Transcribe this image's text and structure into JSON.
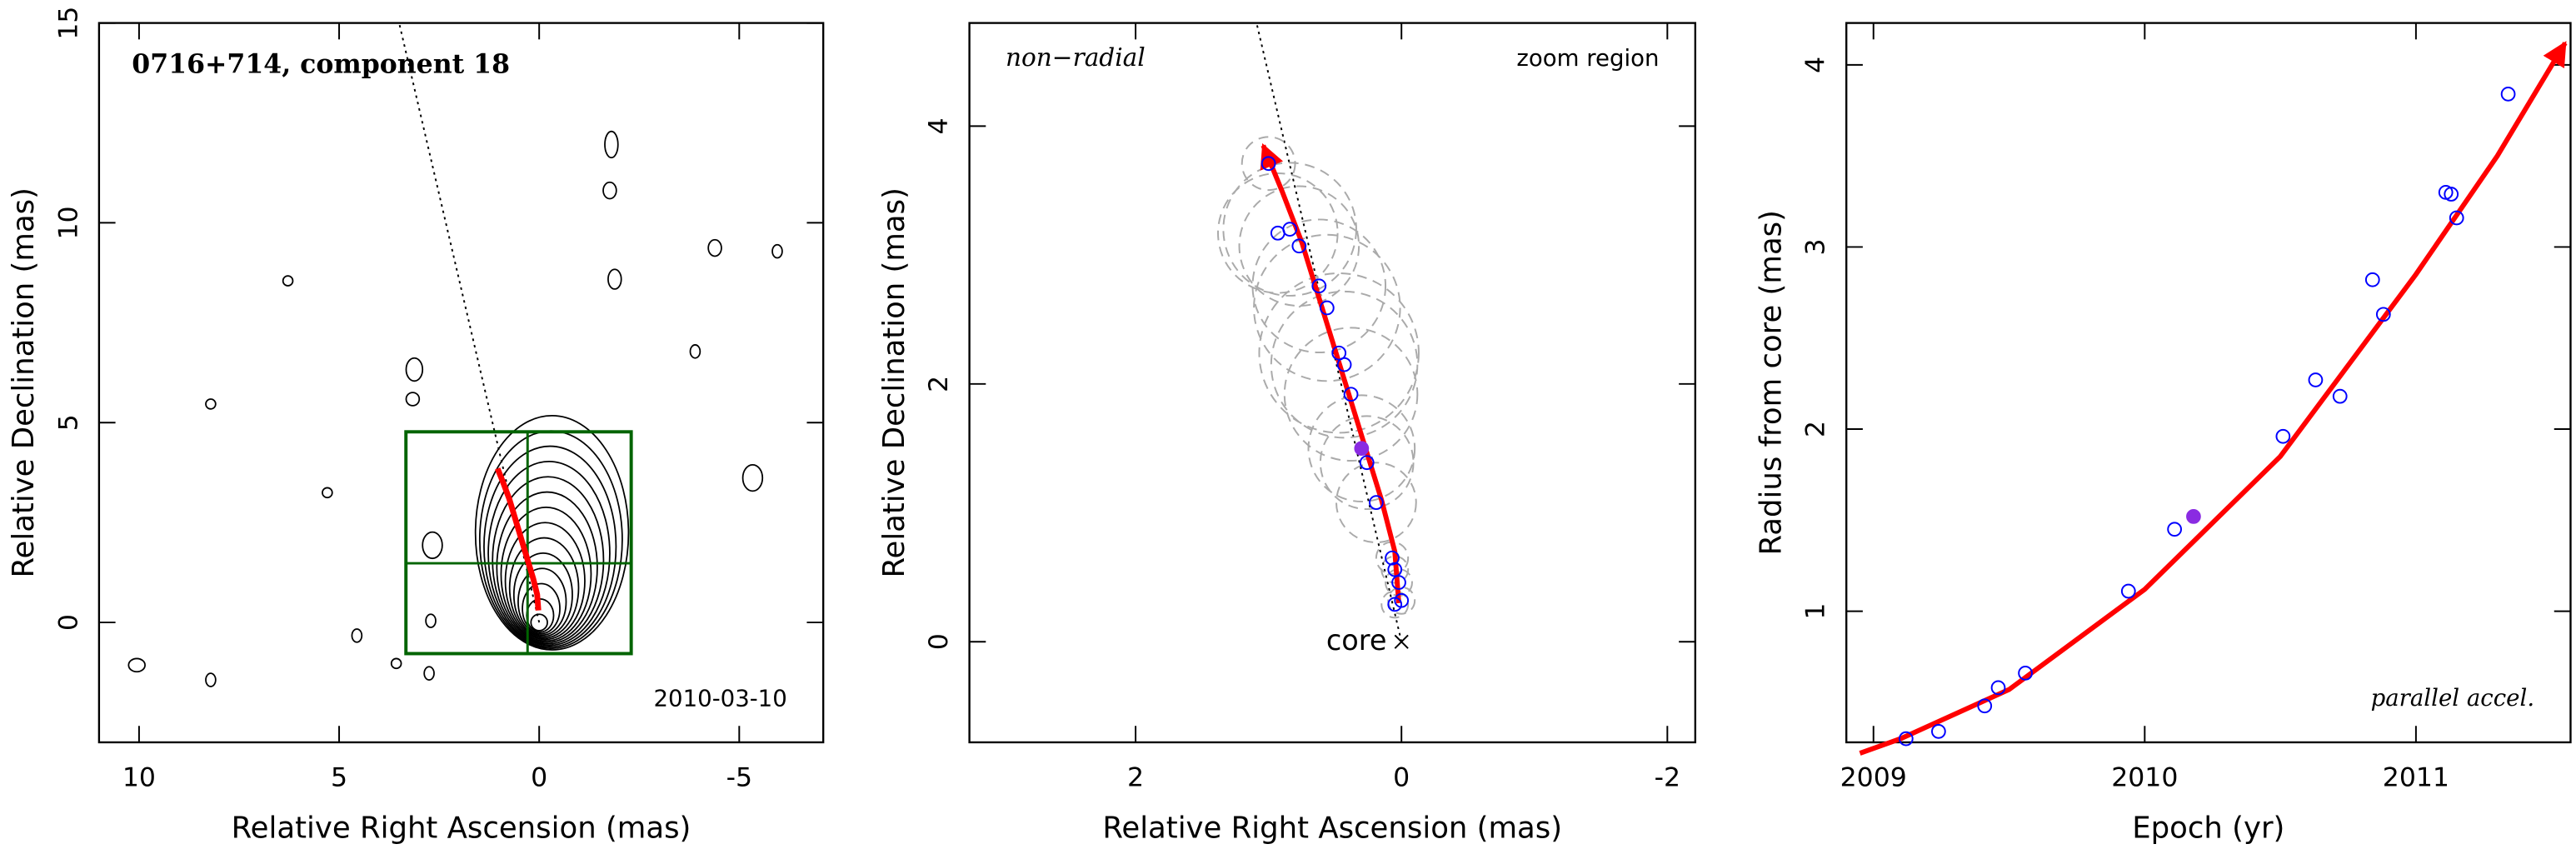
{
  "chart_data": [
    {
      "type": "contour",
      "title": "0716+714, component 18",
      "annotation": "2010-03-10",
      "xlabel": "Relative Right Ascension (mas)",
      "ylabel": "Relative Declination (mas)",
      "xlim": [
        11,
        -7.1
      ],
      "ylim": [
        -3,
        15
      ],
      "xticks": [
        10,
        5,
        0,
        -5
      ],
      "yticks": [
        0,
        5,
        10,
        15
      ],
      "zoom_box": {
        "x": [
          3.33,
          -2.3
        ],
        "y": [
          -0.78,
          4.77
        ],
        "color": "#006400"
      },
      "marker": {
        "x": 0.29,
        "y": 1.48
      },
      "radial_line": {
        "x": [
          0,
          3.5
        ],
        "y": [
          0,
          15
        ]
      },
      "fit": {
        "x": [
          0.02,
          0.05,
          0.15,
          0.3,
          0.45,
          0.6,
          0.75,
          0.9,
          1.04
        ],
        "y": [
          0.3,
          0.7,
          1.1,
          1.6,
          2.1,
          2.6,
          3.1,
          3.5,
          3.85
        ],
        "color": "#ff0000"
      }
    },
    {
      "type": "scatter",
      "annotation_left": "non−radial",
      "annotation_right": "zoom region",
      "core_label": "core",
      "xlabel": "Relative Right Ascension (mas)",
      "ylabel": "Relative Declination (mas)",
      "xlim": [
        3.25,
        -2.21
      ],
      "ylim": [
        -0.78,
        4.8
      ],
      "xticks": [
        2,
        0,
        -2
      ],
      "yticks": [
        0,
        2,
        4
      ],
      "x": [
        1.0,
        0.93,
        0.84,
        0.77,
        0.62,
        0.56,
        0.47,
        0.43,
        0.38,
        0.3,
        0.26,
        0.19,
        0.07,
        0.05,
        0.02,
        0.05,
        0.0
      ],
      "y": [
        3.71,
        3.17,
        3.2,
        3.07,
        2.76,
        2.59,
        2.24,
        2.15,
        1.92,
        1.5,
        1.39,
        1.08,
        0.65,
        0.56,
        0.46,
        0.29,
        0.32
      ],
      "error_radii": [
        0.2,
        0.45,
        0.5,
        0.45,
        0.5,
        0.55,
        0.6,
        0.55,
        0.5,
        0.4,
        0.35,
        0.3,
        0.12,
        0.1,
        0.1,
        0.1,
        0.1
      ],
      "filled_index": 9,
      "point_color": "#0000ff",
      "filled_color": "#8a2be2",
      "error_color": "#aaaaaa",
      "radial_line": {
        "x": [
          0,
          1.09
        ],
        "y": [
          0,
          4.8
        ]
      },
      "fit": {
        "x": [
          0.02,
          0.05,
          0.15,
          0.3,
          0.45,
          0.6,
          0.75,
          0.9,
          1.04
        ],
        "y": [
          0.3,
          0.7,
          1.1,
          1.6,
          2.1,
          2.6,
          3.1,
          3.5,
          3.85
        ],
        "color": "#ff0000"
      }
    },
    {
      "type": "scatter",
      "annotation": "parallel accel.",
      "xlabel": "Epoch (yr)",
      "ylabel": "Radius from core (mas)",
      "xlim": [
        2008.9,
        2011.57
      ],
      "ylim": [
        0.28,
        4.23
      ],
      "xticks": [
        2009,
        2010,
        2011
      ],
      "yticks": [
        1,
        2,
        3,
        4
      ],
      "x": [
        2009.12,
        2009.24,
        2009.41,
        2009.46,
        2009.56,
        2009.94,
        2010.11,
        2010.18,
        2010.51,
        2010.63,
        2010.72,
        2010.84,
        2010.88,
        2011.11,
        2011.13,
        2011.15,
        2011.34
      ],
      "y": [
        0.3,
        0.34,
        0.48,
        0.58,
        0.66,
        1.11,
        1.45,
        1.52,
        1.96,
        2.27,
        2.18,
        2.82,
        2.63,
        3.3,
        3.29,
        3.16,
        3.84
      ],
      "filled_index": 7,
      "point_color": "#0000ff",
      "filled_color": "#8a2be2",
      "fit": {
        "x": [
          2008.95,
          2009.1,
          2009.5,
          2010.0,
          2010.5,
          2011.0,
          2011.3,
          2011.55
        ],
        "y": [
          0.22,
          0.3,
          0.57,
          1.12,
          1.85,
          2.85,
          3.5,
          4.12
        ],
        "color": "#ff0000"
      }
    }
  ]
}
